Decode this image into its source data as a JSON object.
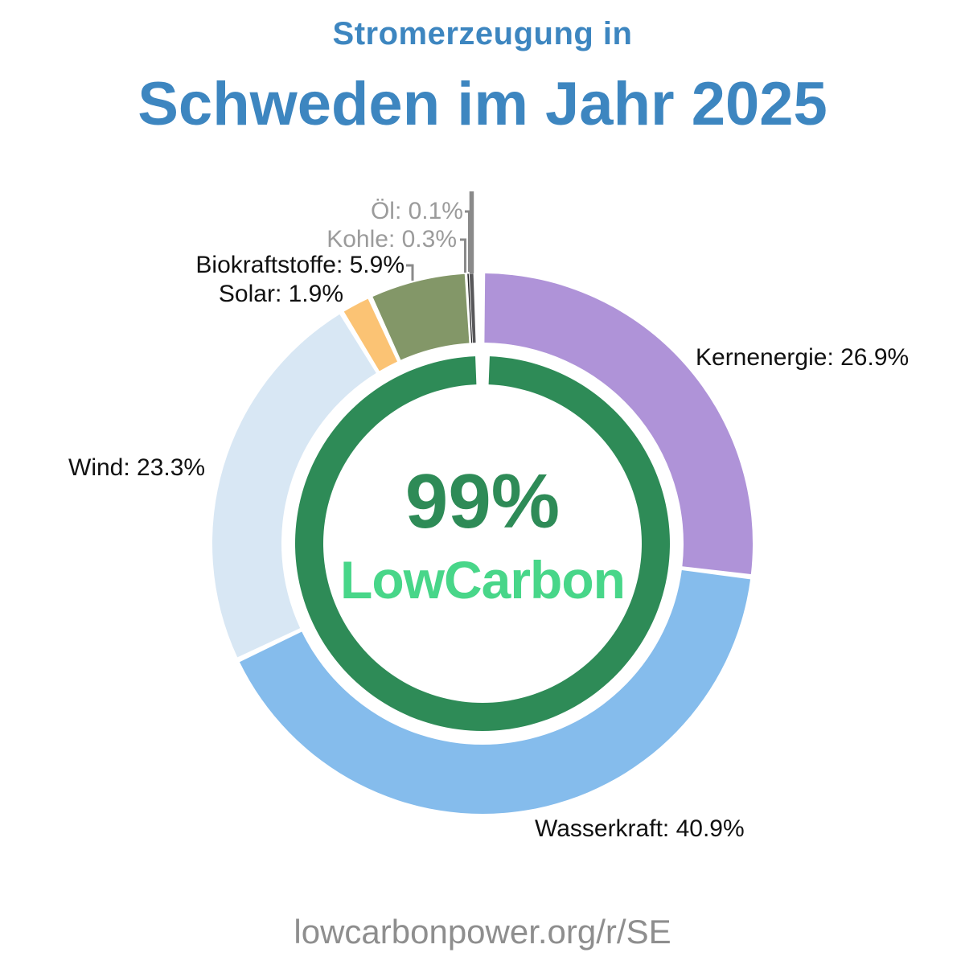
{
  "header": {
    "subtitle": "Stromerzeugung in",
    "title": "Schweden im Jahr 2025",
    "title_color": "#3d86c0"
  },
  "footer": {
    "url": "lowcarbonpower.org/r/SE"
  },
  "chart_data": {
    "type": "pie",
    "variant": "donut",
    "title": "Stromerzeugung in Schweden im Jahr 2025",
    "unit": "%",
    "direction": "clockwise",
    "start_angle_deg": 0,
    "legend_position": "around-slices",
    "grid": false,
    "slices": [
      {
        "label": "Kernenergie",
        "value": 26.9,
        "label_text": "Kernenergie: 26.9%",
        "color": "#af93d8",
        "label_color": "#111111"
      },
      {
        "label": "Wasserkraft",
        "value": 40.9,
        "label_text": "Wasserkraft: 40.9%",
        "color": "#85bcec",
        "label_color": "#111111"
      },
      {
        "label": "Wind",
        "value": 23.3,
        "label_text": "Wind: 23.3%",
        "color": "#d8e7f4",
        "label_color": "#111111"
      },
      {
        "label": "Solar",
        "value": 1.9,
        "label_text": "Solar: 1.9%",
        "color": "#fbc374",
        "label_color": "#111111"
      },
      {
        "label": "Biokraftstoffe",
        "value": 5.9,
        "label_text": "Biokraftstoffe: 5.9%",
        "color": "#839768",
        "label_color": "#111111"
      },
      {
        "label": "Öl",
        "value": 0.1,
        "label_text": "Öl: 0.1%",
        "color": "#29292b",
        "label_color": "#9b9b9b"
      },
      {
        "label": "Kohle",
        "value": 0.3,
        "label_text": "Kohle: 0.3%",
        "color": "#58585a",
        "label_color": "#9b9b9b"
      }
    ],
    "center_badge": {
      "percent": "99%",
      "label": "LowCarbon",
      "ring_color": "#2e8b57",
      "percent_color": "#2e8b57",
      "brand_color": "#48d689"
    }
  }
}
